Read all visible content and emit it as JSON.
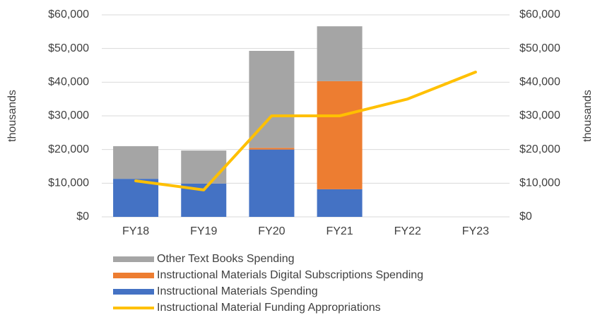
{
  "chart_data": {
    "type": "bar",
    "categories": [
      "FY18",
      "FY19",
      "FY20",
      "FY21",
      "FY22",
      "FY23"
    ],
    "series": [
      {
        "name": "Instructional Materials Spending",
        "color": "#4472c4",
        "values": [
          11300,
          9900,
          20000,
          8200,
          null,
          null
        ]
      },
      {
        "name": "Instructional Materials Digital Subscriptions Spending",
        "color": "#ed7d31",
        "values": [
          null,
          null,
          500,
          32100,
          null,
          null
        ]
      },
      {
        "name": "Other Text Books Spending",
        "color": "#a5a5a5",
        "values": [
          9700,
          9800,
          28800,
          16300,
          null,
          null
        ]
      },
      {
        "name": "Instructional Material Funding Appropriations",
        "color": "#ffc000",
        "type": "line",
        "axis": "y2",
        "values": [
          10700,
          8000,
          30000,
          30000,
          35000,
          43000
        ]
      }
    ],
    "ylabel": "thousands",
    "y2label": "thousands",
    "ylim": [
      0,
      60000
    ],
    "yticks": [
      {
        "value": 0,
        "label": "$0"
      },
      {
        "value": 10000,
        "label": "$10,000"
      },
      {
        "value": 20000,
        "label": "$20,000"
      },
      {
        "value": 30000,
        "label": "$30,000"
      },
      {
        "value": 40000,
        "label": "$40,000"
      },
      {
        "value": 50000,
        "label": "$50,000"
      },
      {
        "value": 60000,
        "label": "$60,000"
      }
    ],
    "y2lim": [
      0,
      60000
    ],
    "y2ticks": [
      {
        "value": 0,
        "label": "$0"
      },
      {
        "value": 10000,
        "label": "$10,000"
      },
      {
        "value": 20000,
        "label": "$20,000"
      },
      {
        "value": 30000,
        "label": "$30,000"
      },
      {
        "value": 40000,
        "label": "$40,000"
      },
      {
        "value": 50000,
        "label": "$50,000"
      },
      {
        "value": 60000,
        "label": "$60,000"
      }
    ],
    "grid": true,
    "legend": "bottom"
  }
}
